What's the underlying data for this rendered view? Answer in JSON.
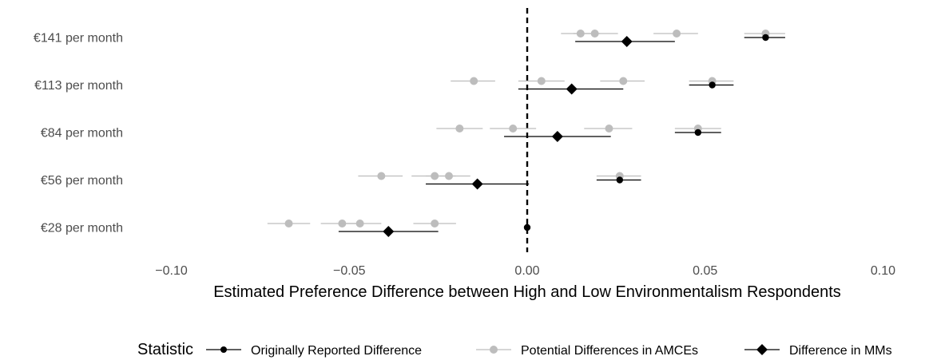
{
  "chart_data": {
    "type": "scatter",
    "xlabel": "Estimated Preference Difference between High and Low Environmentalism Respondents",
    "ylabel": "",
    "xlim": [
      -0.11,
      0.11
    ],
    "xticks": [
      {
        "value": -0.1,
        "label": "−0.10"
      },
      {
        "value": -0.05,
        "label": "−0.05"
      },
      {
        "value": 0.0,
        "label": "0.00"
      },
      {
        "value": 0.05,
        "label": "0.05"
      },
      {
        "value": 0.1,
        "label": "0.10"
      }
    ],
    "categories": [
      "€141 per month",
      "€113 per month",
      "€84 per month",
      "€56 per month",
      "€28 per month"
    ],
    "reference_line": 0,
    "grid": false,
    "legend": {
      "title": "Statistic",
      "position": "bottom",
      "entries": [
        {
          "label": "Originally Reported Difference",
          "marker": "circle",
          "color": "#000000"
        },
        {
          "label": "Potential Differences in AMCEs",
          "marker": "circle",
          "color": "#bdbdbd"
        },
        {
          "label": "Difference in MMs",
          "marker": "diamond",
          "color": "#000000"
        }
      ]
    },
    "series": [
      {
        "statistic": "Potential Differences in AMCEs",
        "color": "#bdbdbd",
        "points": [
          {
            "category": "€141 per month",
            "estimate": 0.015,
            "ci": [
              0.0095,
              0.0205
            ]
          },
          {
            "category": "€141 per month",
            "estimate": 0.019,
            "ci": [
              0.013,
              0.0255
            ]
          },
          {
            "category": "€141 per month",
            "estimate": 0.042,
            "ci": [
              0.0355,
              0.048
            ]
          },
          {
            "category": "€141 per month",
            "estimate": 0.067,
            "ci": [
              0.061,
              0.0725
            ]
          },
          {
            "category": "€113 per month",
            "estimate": -0.015,
            "ci": [
              -0.0215,
              -0.009
            ]
          },
          {
            "category": "€113 per month",
            "estimate": 0.004,
            "ci": [
              -0.0025,
              0.0105
            ]
          },
          {
            "category": "€113 per month",
            "estimate": 0.027,
            "ci": [
              0.0205,
              0.033
            ]
          },
          {
            "category": "€113 per month",
            "estimate": 0.052,
            "ci": [
              0.0455,
              0.058
            ]
          },
          {
            "category": "€84 per month",
            "estimate": -0.019,
            "ci": [
              -0.0255,
              -0.0125
            ]
          },
          {
            "category": "€84 per month",
            "estimate": -0.004,
            "ci": [
              -0.0105,
              0.0025
            ]
          },
          {
            "category": "€84 per month",
            "estimate": 0.023,
            "ci": [
              0.016,
              0.0295
            ]
          },
          {
            "category": "€84 per month",
            "estimate": 0.048,
            "ci": [
              0.0415,
              0.0545
            ]
          },
          {
            "category": "€56 per month",
            "estimate": -0.041,
            "ci": [
              -0.0475,
              -0.035
            ]
          },
          {
            "category": "€56 per month",
            "estimate": -0.026,
            "ci": [
              -0.0325,
              -0.02
            ]
          },
          {
            "category": "€56 per month",
            "estimate": -0.022,
            "ci": [
              -0.0285,
              -0.016
            ]
          },
          {
            "category": "€56 per month",
            "estimate": 0.026,
            "ci": [
              0.0195,
              0.032
            ]
          },
          {
            "category": "€28 per month",
            "estimate": -0.067,
            "ci": [
              -0.073,
              -0.061
            ]
          },
          {
            "category": "€28 per month",
            "estimate": -0.052,
            "ci": [
              -0.058,
              -0.046
            ]
          },
          {
            "category": "€28 per month",
            "estimate": -0.047,
            "ci": [
              -0.053,
              -0.041
            ]
          },
          {
            "category": "€28 per month",
            "estimate": -0.026,
            "ci": [
              -0.032,
              -0.02
            ]
          }
        ]
      },
      {
        "statistic": "Originally Reported Difference",
        "color": "#000000",
        "points": [
          {
            "category": "€141 per month",
            "estimate": 0.067,
            "ci": [
              0.061,
              0.0725
            ]
          },
          {
            "category": "€113 per month",
            "estimate": 0.052,
            "ci": [
              0.0455,
              0.058
            ]
          },
          {
            "category": "€84 per month",
            "estimate": 0.048,
            "ci": [
              0.0415,
              0.0545
            ]
          },
          {
            "category": "€56 per month",
            "estimate": 0.026,
            "ci": [
              0.0195,
              0.032
            ]
          },
          {
            "category": "€28 per month",
            "estimate": 0.0,
            "ci": [
              0.0,
              0.0
            ]
          }
        ]
      },
      {
        "statistic": "Difference in MMs",
        "color": "#000000",
        "points": [
          {
            "category": "€141 per month",
            "estimate": 0.028,
            "ci": [
              0.0135,
              0.0415
            ]
          },
          {
            "category": "€113 per month",
            "estimate": 0.0125,
            "ci": [
              -0.0025,
              0.027
            ]
          },
          {
            "category": "€84 per month",
            "estimate": 0.0085,
            "ci": [
              -0.0065,
              0.0235
            ]
          },
          {
            "category": "€56 per month",
            "estimate": -0.014,
            "ci": [
              -0.0285,
              0.0005
            ]
          },
          {
            "category": "€28 per month",
            "estimate": -0.039,
            "ci": [
              -0.053,
              -0.025
            ]
          }
        ]
      }
    ]
  }
}
